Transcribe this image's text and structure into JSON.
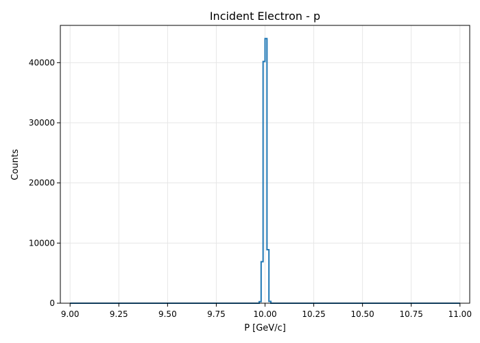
{
  "chart_data": {
    "type": "histogram",
    "title": "Incident Electron - p",
    "xlabel": "P [GeV/c]",
    "ylabel": "Counts",
    "xlim": [
      8.95,
      11.05
    ],
    "ylim": [
      0,
      46200
    ],
    "grid": true,
    "x_ticks": [
      9.0,
      9.25,
      9.5,
      9.75,
      10.0,
      10.25,
      10.5,
      10.75,
      11.0
    ],
    "x_tick_labels": [
      "9.00",
      "9.25",
      "9.50",
      "9.75",
      "10.00",
      "10.25",
      "10.50",
      "10.75",
      "11.00"
    ],
    "y_ticks": [
      0,
      10000,
      20000,
      30000,
      40000
    ],
    "y_tick_labels": [
      "0",
      "10000",
      "20000",
      "30000",
      "40000"
    ],
    "bins": {
      "edges": [
        9.0,
        9.97,
        9.98,
        9.99,
        10.0,
        10.01,
        10.02,
        10.03,
        11.0
      ],
      "counts": [
        0,
        250,
        6900,
        40200,
        44000,
        8900,
        300,
        0
      ]
    },
    "color": "#1f77b4"
  }
}
